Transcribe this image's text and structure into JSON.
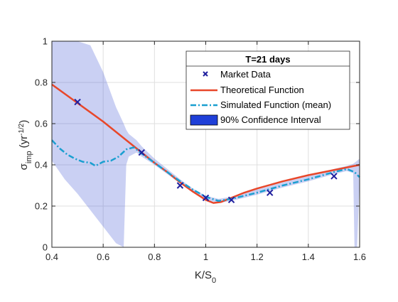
{
  "chart_data": {
    "type": "line",
    "xlabel": "K/S",
    "xlabel_sub": "0",
    "ylabel": "σ",
    "ylabel_sub": "imp",
    "ylabel_unit": "(yr",
    "ylabel_unit_sup": "-1/2",
    "ylabel_unit_close": ")",
    "xlim": [
      0.4,
      1.6
    ],
    "ylim": [
      0,
      1
    ],
    "xticks": [
      0.4,
      0.6,
      0.8,
      1,
      1.2,
      1.4,
      1.6
    ],
    "xtick_labels": [
      "0.4",
      "0.6",
      "0.8",
      "1",
      "1.2",
      "1.4",
      "1.6"
    ],
    "yticks": [
      0,
      0.2,
      0.4,
      0.6,
      0.8,
      1
    ],
    "ytick_labels": [
      "0",
      "0.2",
      "0.4",
      "0.6",
      "0.8",
      "1"
    ],
    "grid": true,
    "legend_position": "top-right",
    "legend_title": "T=21 days",
    "legend_entries": [
      {
        "label": "Market Data",
        "style": "marker-x",
        "color": "#1f1f9e"
      },
      {
        "label": "Theoretical Function",
        "style": "solid",
        "color": "#e8472a"
      },
      {
        "label": "Simulated Function (mean)",
        "style": "dashdot",
        "color": "#1a9fd0"
      },
      {
        "label": "90% Confidence Interval",
        "style": "patch",
        "color": "#1f3fd8"
      }
    ],
    "series": [
      {
        "name": "Market Data",
        "kind": "scatter",
        "color": "#1f1f9e",
        "x": [
          0.5,
          0.75,
          0.9,
          1.0,
          1.1,
          1.25,
          1.5
        ],
        "y": [
          0.705,
          0.46,
          0.3,
          0.24,
          0.23,
          0.265,
          0.345
        ]
      },
      {
        "name": "Theoretical Function",
        "kind": "line",
        "color": "#e8472a",
        "x": [
          0.4,
          0.5,
          0.6,
          0.7,
          0.75,
          0.8,
          0.85,
          0.9,
          0.95,
          1.0,
          1.03,
          1.06,
          1.1,
          1.15,
          1.2,
          1.3,
          1.4,
          1.5,
          1.6
        ],
        "y": [
          0.79,
          0.7,
          0.61,
          0.51,
          0.46,
          0.41,
          0.365,
          0.315,
          0.27,
          0.23,
          0.215,
          0.22,
          0.24,
          0.265,
          0.285,
          0.32,
          0.35,
          0.375,
          0.4
        ]
      },
      {
        "name": "Simulated Function (mean)",
        "kind": "line",
        "color": "#1a9fd0",
        "x": [
          0.4,
          0.43,
          0.46,
          0.49,
          0.52,
          0.55,
          0.57,
          0.6,
          0.63,
          0.66,
          0.69,
          0.72,
          0.75,
          0.8,
          0.85,
          0.9,
          0.95,
          1.0,
          1.05,
          1.1,
          1.2,
          1.3,
          1.4,
          1.5,
          1.55,
          1.58,
          1.6
        ],
        "y": [
          0.52,
          0.48,
          0.45,
          0.43,
          0.415,
          0.41,
          0.395,
          0.415,
          0.42,
          0.44,
          0.475,
          0.485,
          0.455,
          0.41,
          0.365,
          0.32,
          0.28,
          0.245,
          0.225,
          0.235,
          0.265,
          0.3,
          0.33,
          0.365,
          0.38,
          0.365,
          0.34
        ]
      },
      {
        "name": "90% Confidence Interval",
        "kind": "band",
        "color": "#3f55d4",
        "x": [
          0.4,
          0.45,
          0.5,
          0.55,
          0.6,
          0.65,
          0.68,
          0.69,
          0.7,
          0.73,
          0.75,
          0.8,
          0.85,
          0.9,
          0.95,
          1.0,
          1.05,
          1.1,
          1.2,
          1.3,
          1.4,
          1.5,
          1.55,
          1.575,
          1.58,
          1.59,
          1.6
        ],
        "upper": [
          1.0,
          1.0,
          1.0,
          0.98,
          0.85,
          0.68,
          0.6,
          0.57,
          0.55,
          0.52,
          0.49,
          0.43,
          0.38,
          0.33,
          0.285,
          0.25,
          0.235,
          0.245,
          0.28,
          0.315,
          0.345,
          0.38,
          0.395,
          0.405,
          0.41,
          0.42,
          0.43
        ],
        "lower": [
          0.42,
          0.33,
          0.26,
          0.18,
          0.1,
          0.02,
          0.0,
          0.4,
          0.44,
          0.46,
          0.44,
          0.4,
          0.355,
          0.31,
          0.265,
          0.23,
          0.215,
          0.225,
          0.255,
          0.29,
          0.32,
          0.355,
          0.37,
          0.36,
          0.0,
          0.0,
          0.32
        ]
      }
    ]
  }
}
